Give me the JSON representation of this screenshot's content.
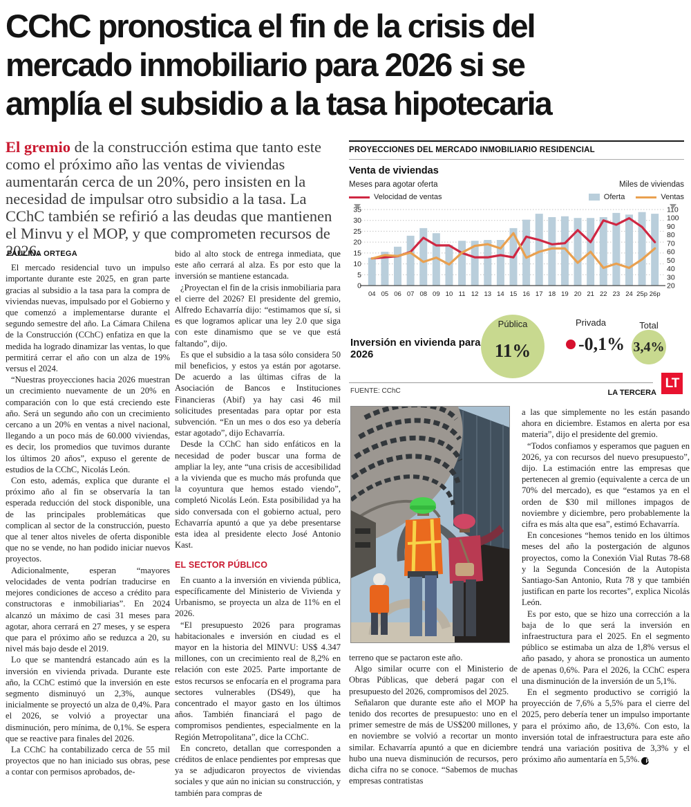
{
  "article": {
    "headline": {
      "line1": "CChC pronostica el fin de la crisis del",
      "line2": "mercado inmobiliario para 2026 si se",
      "line3": "amplía el subsidio a la tasa hipotecaria"
    },
    "lead": {
      "highlight": "El gremio",
      "rest": " de la construcción estima que tanto este como el próximo año las ventas de viviendas aumentarán cerca de un 20%, pero insisten en la necesidad de impulsar otro subsidio a la tasa. La CChC también se refirió a las deudas que mantienen el Minvu y el MOP, y que comprometen recursos de 2026."
    },
    "byline": "PAULINA ORTEGA",
    "col1": [
      "El mercado residencial tuvo un impulso importante durante este 2025, en gran parte gracias al subsidio a la tasa para la compra de viviendas nuevas, impulsado por el Gobierno y que comenzó a implementarse durante el segundo semestre del año. La Cámara Chilena de la Construcción (CChC) enfatiza en que la medida ha logrado dinamizar las ventas, lo que permitirá cerrar el año con un alza de 19% versus el 2024.",
      "“Nuestras proyecciones hacia 2026 muestran un crecimiento nuevamente de un 20% en comparación con lo que está creciendo este año. Será un segundo año con un crecimiento cercano a un 20% en ventas a nivel nacional, llegando a un poco más de 60.000 viviendas, es decir, los promedios que tuvimos durante los últimos 20 años”, expuso el gerente de estudios de la CChC, Nicolás León.",
      "Con esto, además, explica que durante el próximo año al fin se observaría la tan esperada reducción del stock disponible, una de las principales problemáticas que complican al sector de la construcción, puesto que al tener altos niveles de oferta disponible que no se vende, no han podido iniciar nuevos proyectos.",
      "Adicionalmente, esperan “mayores velocidades de venta podrían traducirse en mejores condiciones de acceso a crédito para constructoras e inmobiliarias”. En 2024 alcanzó un máximo de casi 31 meses para agotar, ahora cerrará en 27 meses, y se espera que para el próximo año se reduzca a 20, su nivel más bajo desde el 2019.",
      "Lo que se mantendrá estancado aún es la inversión en vivienda privada. Durante este año, la CChC estimó que la inversión en este segmento disminuyó un 2,3%, aunque inicialmente se proyectó un alza de 0,4%. Para el 2026, se volvió a proyectar una disminución, pero mínima, de 0,1%. Se espera que se reactive para finales del 2026.",
      "La CChC ha contabilizado cerca de 55 mil proyectos que no han iniciado sus obras, pese a contar con permisos aprobados, de-"
    ],
    "col2a": [
      "bido al alto stock de entrega inmediata, que este año cerrará al alza. Es por esto que la inversión se mantiene estancada.",
      "¿Proyectan el fin de la crisis inmobiliaria para el cierre del 2026? El presidente del gremio, Alfredo Echavarría dijo: “estimamos que sí, si es que logramos aplicar una ley 2.0 que siga con este dinamismo que se ve que está faltando”, dijo.",
      "Es que el subsidio a la tasa sólo considera 50 mil beneficios, y estos ya están por agotarse. De acuerdo a las últimas cifras de la Asociación de Bancos e Instituciones Financieras (Abif) ya hay casi 46 mil solicitudes presentadas para optar por esta subvención. “En un mes o dos eso ya debería estar agotado”, dijo Echavarría.",
      "Desde la CChC han sido enfáticos en la necesidad de poder buscar una forma de ampliar la ley, ante “una crisis de accesibilidad a la vivienda que es mucho más profunda que la coyuntura que hemos estado viendo”, completó Nicolás León. Esta posibilidad ya ha sido conversada con el gobierno actual, pero Echavarría apuntó a que ya debe presentarse esta idea al presidente electo José Antonio Kast."
    ],
    "col2_subhead": "EL SECTOR PÚBLICO",
    "col2b": [
      "En cuanto a la inversión en vivienda pública, específicamente del Ministerio de Vivienda y Urbanismo, se proyecta un alza de 11% en el 2026.",
      "“El presupuesto 2026 para programas habitacionales e inversión en ciudad es el mayor en la historia del MINVU: US$ 4.347 millones, con un crecimiento real de 8,2% en relación con este 2025. Parte importante de estos recursos se enfocaría en el programa para sectores vulnerables (DS49), que ha concentrado el mayor gasto en los últimos años. También financiará el pago de compromisos pendientes, especialmente en la Región Metropolitana”, dice la CChC.",
      "En concreto, detallan que corresponden a créditos de enlace pendientes por empresas que ya se adjudicaron proyectos de viviendas sociales y que aún no inician su construcción, y también para compras de"
    ],
    "col3": [
      "terreno que se pactaron este año.",
      "Algo similar ocurre con el Ministerio de Obras Públicas, que deberá pagar con el presupuesto del 2026, compromisos del 2025.",
      "Señalaron que durante este año el MOP ha tenido dos recortes de presupuesto: uno en el primer semestre de más de US$200 millones, y en noviembre se volvió a recortar un monto similar. Echavarría apuntó a que en diciembre hubo una nueva disminución de recursos, pero dicha cifra no se conoce. “Sabemos de muchas empresas contratistas"
    ],
    "col4": [
      "a las que simplemente no les están pasando ahora en diciembre. Estamos en alerta por esa materia”, dijo el presidente del gremio.",
      "“Todos confiamos y esperamos que paguen en 2026, ya con recursos del nuevo presupuesto”, dijo. La estimación entre las empresas que pertenecen al gremio (equivalente a cerca de un 70% del mercado), es que “estamos ya en el orden de $30 mil millones impagos de noviembre y diciembre, pero probablemente la cifra es más alta que esa”, estimó Echavarría.",
      "En concesiones “hemos tenido en los últimos meses del año la postergación de algunos proyectos, como la Conexión Vial Rutas 78-68 y la Segunda Concesión de la Autopista Santiago-San Antonio, Ruta 78 y que también justifican en parte los recortes”, explica Nicolás León.",
      "Es por esto, que se hizo una corrección a la baja de lo que será la inversión en infraestructura para el 2025. En el segmento público se estimaba un alza de 1,8% versus el año pasado, y ahora se pronostica un aumento de apenas 0,6%. Para el 2026, la CChC espera una disminución de la inversión de un 5,1%.",
      "En el segmento productivo se corrigió la proyección de 7,6% a 5,5% para el cierre del 2025, pero debería tener un impulso importante para el próximo año, de 13,6%. Con esto, la inversión total de infraestructura para este año tendrá una variación positiva de 3,3% y el próximo año aumentaría en 5,5%."
    ],
    "end_mark": "P"
  },
  "infographic": {
    "kicker": "PROYECCIONES DEL MERCADO INMOBILIARIO RESIDENCIAL",
    "chart_title": "Venta de viviendas",
    "left_axis_label": "Meses para agotar oferta",
    "right_axis_label": "Miles de viviendas",
    "legend": {
      "velocidad": "Velocidad de ventas",
      "oferta": "Oferta",
      "ventas": "Ventas"
    },
    "inversion_label": "Inversión en vivienda para 2026",
    "bubbles": [
      {
        "label": "Pública",
        "value": "11%"
      },
      {
        "label": "Privada",
        "value": "-0,1%"
      },
      {
        "label": "Total",
        "value": "3,4%"
      }
    ],
    "source": "FUENTE: CChC",
    "credit": "LA TERCERA",
    "logo": "LT"
  },
  "chart_data": {
    "type": "bar+line",
    "title": "Venta de viviendas",
    "categories": [
      "04",
      "05",
      "06",
      "07",
      "08",
      "09",
      "10",
      "11",
      "12",
      "13",
      "14",
      "15",
      "16",
      "17",
      "18",
      "19",
      "20",
      "21",
      "22",
      "23",
      "24",
      "25p",
      "26p"
    ],
    "series": [
      {
        "name": "Oferta",
        "type": "bar",
        "axis": "right",
        "values": [
          53,
          60,
          66,
          79,
          88,
          82,
          68,
          73,
          73,
          74,
          74,
          88,
          98,
          105,
          101,
          102,
          100,
          100,
          101,
          106,
          104,
          107,
          105
        ]
      },
      {
        "name": "Velocidad de ventas",
        "type": "line",
        "axis": "left",
        "values": [
          12.5,
          13,
          13.5,
          15.5,
          22,
          18.5,
          18.5,
          15,
          13,
          13,
          14,
          13,
          22.5,
          21,
          19,
          19.5,
          25.5,
          20,
          30,
          28,
          31,
          27,
          20
        ]
      },
      {
        "name": "Ventas",
        "type": "line",
        "axis": "right",
        "values": [
          52,
          56,
          55,
          59,
          48,
          53,
          45,
          59,
          67,
          69,
          64,
          82,
          53,
          60,
          64,
          64,
          47,
          60,
          41,
          46,
          41,
          51,
          64
        ]
      }
    ],
    "left_axis": {
      "label": "Meses para agotar oferta",
      "min": 0,
      "max": 35,
      "ticks": [
        0,
        5,
        10,
        15,
        20,
        25,
        30,
        35
      ]
    },
    "right_axis": {
      "label": "Miles de viviendas",
      "min": 20,
      "max": 110,
      "ticks": [
        20,
        30,
        40,
        50,
        60,
        70,
        80,
        90,
        100,
        110
      ]
    },
    "grid": "dotted horizontal on left-axis ticks",
    "legend_position": "top"
  },
  "colors": {
    "accent_red": "#c9182f",
    "line_red": "#cf2742",
    "line_orange": "#e9a04f",
    "bar_blue": "#b9cedb",
    "bubble_green": "#c8d98f",
    "privada_dot_red": "#d6102e",
    "logo_red": "#e8132f"
  }
}
